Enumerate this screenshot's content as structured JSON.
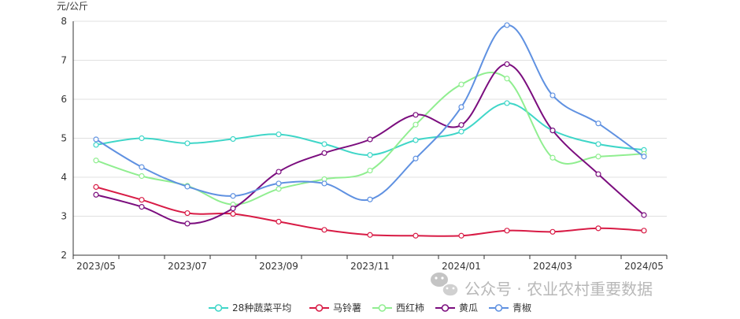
{
  "chart_data": {
    "type": "line",
    "ylabel": "元/公斤",
    "ylim": [
      2,
      8
    ],
    "yticks": [
      2,
      3,
      4,
      5,
      6,
      7,
      8
    ],
    "x": [
      "2023/05",
      "2023/06",
      "2023/07",
      "2023/08",
      "2023/09",
      "2023/10",
      "2023/11",
      "2023/12",
      "2024/01",
      "2024/02",
      "2024/03",
      "2024/04",
      "2024/05"
    ],
    "xtick_labels": [
      "2023/05",
      "2023/07",
      "2023/09",
      "2023/11",
      "2024/01",
      "2024/03",
      "2024/05"
    ],
    "grid": true,
    "smooth": true,
    "legend_position": "bottom-center",
    "series": [
      {
        "name": "28种蔬菜平均",
        "color": "#3fd6c8",
        "values": [
          4.83,
          5.0,
          4.87,
          4.98,
          5.1,
          4.85,
          4.57,
          4.95,
          5.17,
          5.9,
          5.2,
          4.85,
          4.7
        ]
      },
      {
        "name": "马铃薯",
        "color": "#d81b45",
        "values": [
          3.75,
          3.42,
          3.08,
          3.06,
          2.86,
          2.65,
          2.52,
          2.5,
          2.5,
          2.63,
          2.6,
          2.69,
          2.63
        ]
      },
      {
        "name": "西红柿",
        "color": "#90ee90",
        "values": [
          4.43,
          4.03,
          3.78,
          3.3,
          3.7,
          3.95,
          4.17,
          5.35,
          6.38,
          6.53,
          4.5,
          4.53,
          4.6
        ]
      },
      {
        "name": "黄瓜",
        "color": "#7b0d7e",
        "values": [
          3.55,
          3.24,
          2.81,
          3.2,
          4.14,
          4.62,
          4.97,
          5.6,
          5.34,
          6.9,
          5.2,
          4.08,
          3.03
        ]
      },
      {
        "name": "青椒",
        "color": "#5f91e1",
        "values": [
          4.97,
          4.26,
          3.76,
          3.52,
          3.84,
          3.84,
          3.43,
          4.48,
          5.8,
          7.9,
          6.1,
          5.38,
          4.53
        ]
      }
    ]
  },
  "watermark": {
    "text": "公众号 · 农业农村重要数据"
  }
}
